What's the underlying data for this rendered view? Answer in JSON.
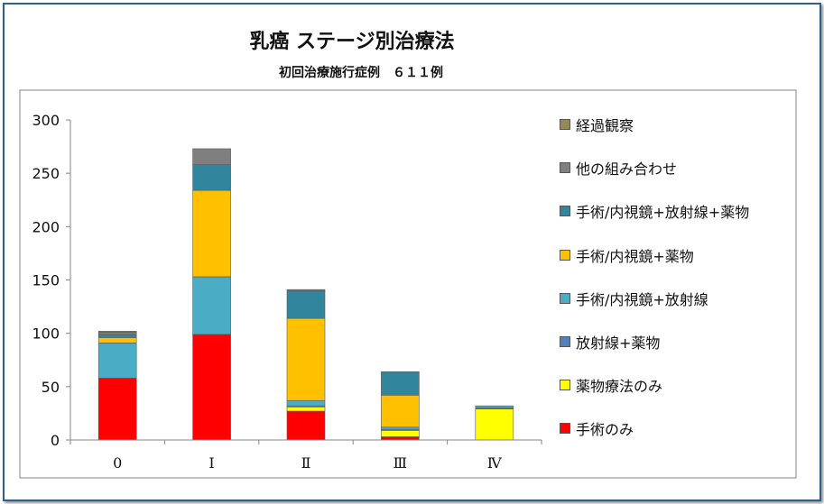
{
  "chart_data": {
    "type": "bar",
    "stacked": true,
    "title": "乳癌 ステージ別治療法",
    "subtitle": "初回治療施行症例　６１１例",
    "xlabel": "",
    "ylabel": "",
    "ylim": [
      0,
      300
    ],
    "yticks": [
      0,
      50,
      100,
      150,
      200,
      250,
      300
    ],
    "grid": false,
    "legend_position": "right",
    "categories": [
      "0",
      "Ⅰ",
      "Ⅱ",
      "Ⅲ",
      "Ⅳ"
    ],
    "series": [
      {
        "name": "手術のみ",
        "color": "#ff0000",
        "values": [
          58,
          99,
          27,
          3,
          0
        ]
      },
      {
        "name": "薬物療法のみ",
        "color": "#ffff00",
        "values": [
          0,
          0,
          4,
          6,
          29
        ]
      },
      {
        "name": "放射線+薬物",
        "color": "#4f81bd",
        "values": [
          0,
          0,
          1,
          1,
          1
        ]
      },
      {
        "name": "手術/内視鏡+放射線",
        "color": "#4bacc6",
        "values": [
          33,
          54,
          5,
          2,
          2
        ]
      },
      {
        "name": "手術/内視鏡+薬物",
        "color": "#ffc000",
        "values": [
          5,
          81,
          77,
          30,
          0
        ]
      },
      {
        "name": "手術/内視鏡+放射線+薬物",
        "color": "#31859c",
        "values": [
          3,
          24,
          26,
          22,
          0
        ]
      },
      {
        "name": "他の組み合わせ",
        "color": "#7f7f7f",
        "values": [
          2,
          15,
          1,
          0,
          0
        ]
      },
      {
        "name": "経過観察",
        "color": "#948a54",
        "values": [
          1,
          0,
          0,
          0,
          0
        ]
      }
    ]
  }
}
